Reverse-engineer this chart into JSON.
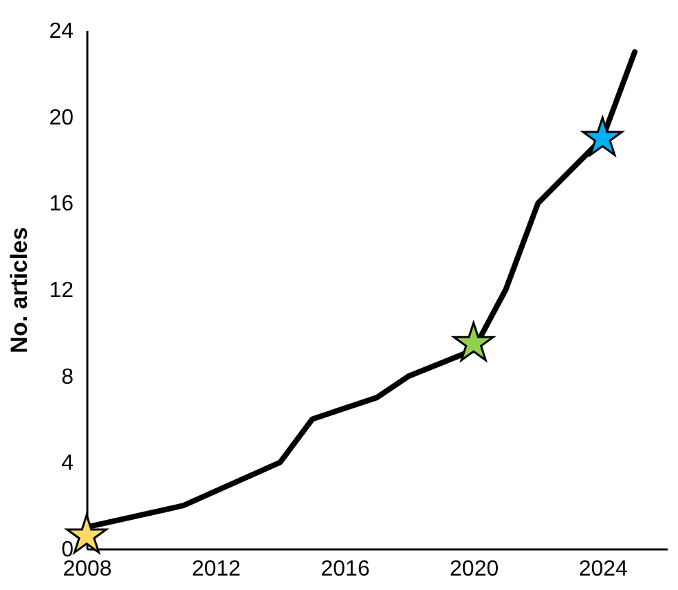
{
  "chart_data": {
    "type": "line",
    "ylabel": "No. articles",
    "x": [
      2008,
      2011,
      2014,
      2015,
      2017,
      2018,
      2020,
      2021,
      2022,
      2024,
      2025
    ],
    "series": [
      {
        "type": "line",
        "color": "#000000",
        "values": [
          1,
          2,
          4,
          6,
          7,
          8,
          9.2,
          12,
          16,
          19,
          23
        ]
      },
      {
        "type": "scatter",
        "x": [
          2008,
          2020,
          2024
        ],
        "values": [
          0.6,
          9.5,
          19
        ],
        "colors": [
          "#ffd966",
          "#92d050",
          "#00b0f0"
        ],
        "marker": "star"
      }
    ],
    "xlim": [
      2008,
      2026
    ],
    "xticks": [
      2008,
      2012,
      2016,
      2020,
      2024
    ],
    "ylim": [
      0,
      24
    ],
    "yticks": [
      0,
      4,
      8,
      12,
      16,
      20,
      24
    ],
    "grid": false,
    "legend": false
  }
}
